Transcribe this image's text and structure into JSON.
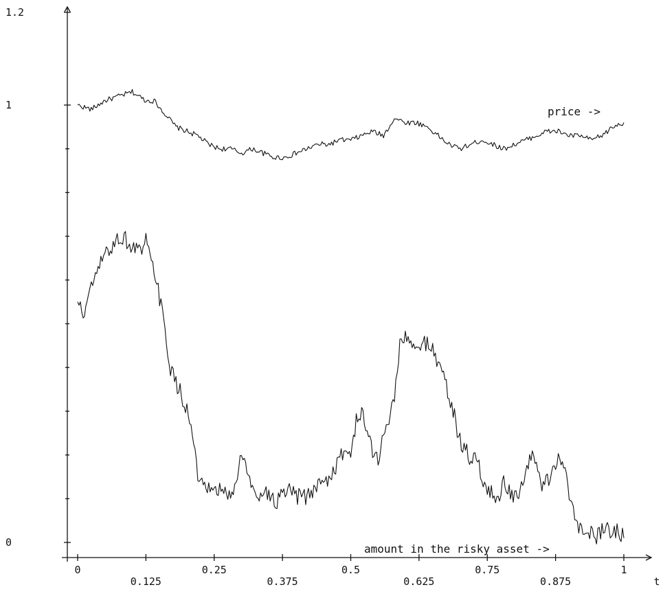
{
  "chart_data": {
    "type": "line",
    "title": "",
    "xlabel": "t",
    "ylabel": "",
    "xlim": [
      0,
      1
    ],
    "ylim": [
      0,
      1.2
    ],
    "grid": false,
    "x_ticks": [
      {
        "value": 0,
        "label": "0"
      },
      {
        "value": 0.125,
        "label": "0.125"
      },
      {
        "value": 0.25,
        "label": "0.25"
      },
      {
        "value": 0.375,
        "label": "0.375"
      },
      {
        "value": 0.5,
        "label": "0.5"
      },
      {
        "value": 0.625,
        "label": "0.625"
      },
      {
        "value": 0.75,
        "label": "0.75"
      },
      {
        "value": 0.875,
        "label": "0.875"
      },
      {
        "value": 1,
        "label": "1"
      }
    ],
    "y_ticks": [
      {
        "value": 0,
        "label": "0"
      },
      {
        "value": 1,
        "label": "1"
      },
      {
        "value": 1.2,
        "label": "1.2"
      }
    ],
    "series": [
      {
        "name": "price ->",
        "x": [
          0,
          0.025,
          0.05,
          0.075,
          0.1,
          0.125,
          0.14,
          0.16,
          0.18,
          0.2,
          0.22,
          0.24,
          0.26,
          0.28,
          0.3,
          0.32,
          0.34,
          0.36,
          0.38,
          0.4,
          0.42,
          0.44,
          0.46,
          0.48,
          0.5,
          0.52,
          0.54,
          0.56,
          0.58,
          0.6,
          0.62,
          0.64,
          0.66,
          0.68,
          0.7,
          0.72,
          0.74,
          0.76,
          0.78,
          0.8,
          0.82,
          0.84,
          0.86,
          0.88,
          0.9,
          0.92,
          0.94,
          0.96,
          0.98,
          1
        ],
        "values": [
          1.0,
          0.99,
          1.01,
          1.02,
          1.03,
          1.01,
          1.01,
          0.98,
          0.95,
          0.94,
          0.93,
          0.91,
          0.9,
          0.9,
          0.89,
          0.9,
          0.89,
          0.88,
          0.88,
          0.89,
          0.9,
          0.91,
          0.91,
          0.92,
          0.92,
          0.93,
          0.94,
          0.93,
          0.97,
          0.96,
          0.96,
          0.95,
          0.93,
          0.91,
          0.9,
          0.91,
          0.92,
          0.91,
          0.9,
          0.91,
          0.92,
          0.93,
          0.94,
          0.94,
          0.93,
          0.93,
          0.92,
          0.93,
          0.95,
          0.96
        ]
      },
      {
        "name": "amount in the risky asset ->",
        "x": [
          0,
          0.01,
          0.02,
          0.03,
          0.04,
          0.05,
          0.06,
          0.07,
          0.08,
          0.09,
          0.1,
          0.11,
          0.12,
          0.125,
          0.13,
          0.14,
          0.15,
          0.16,
          0.17,
          0.18,
          0.19,
          0.2,
          0.21,
          0.22,
          0.23,
          0.24,
          0.25,
          0.26,
          0.27,
          0.28,
          0.29,
          0.3,
          0.31,
          0.32,
          0.33,
          0.34,
          0.35,
          0.36,
          0.37,
          0.38,
          0.39,
          0.4,
          0.41,
          0.42,
          0.43,
          0.44,
          0.45,
          0.46,
          0.47,
          0.48,
          0.49,
          0.5,
          0.51,
          0.52,
          0.53,
          0.54,
          0.55,
          0.56,
          0.57,
          0.58,
          0.59,
          0.6,
          0.61,
          0.62,
          0.63,
          0.64,
          0.65,
          0.66,
          0.67,
          0.68,
          0.69,
          0.7,
          0.71,
          0.72,
          0.73,
          0.74,
          0.75,
          0.76,
          0.77,
          0.78,
          0.79,
          0.8,
          0.81,
          0.82,
          0.83,
          0.84,
          0.85,
          0.86,
          0.87,
          0.88,
          0.89,
          0.9,
          0.91,
          0.92,
          0.93,
          0.94,
          0.95,
          0.96,
          0.97,
          0.98,
          0.99,
          1
        ],
        "values": [
          0.55,
          0.52,
          0.56,
          0.6,
          0.63,
          0.66,
          0.67,
          0.69,
          0.7,
          0.69,
          0.67,
          0.68,
          0.66,
          0.69,
          0.66,
          0.62,
          0.56,
          0.48,
          0.4,
          0.36,
          0.34,
          0.3,
          0.25,
          0.15,
          0.12,
          0.12,
          0.11,
          0.12,
          0.11,
          0.11,
          0.13,
          0.21,
          0.16,
          0.12,
          0.11,
          0.12,
          0.11,
          0.09,
          0.1,
          0.11,
          0.12,
          0.1,
          0.11,
          0.1,
          0.12,
          0.13,
          0.15,
          0.14,
          0.17,
          0.19,
          0.21,
          0.2,
          0.28,
          0.29,
          0.26,
          0.21,
          0.19,
          0.24,
          0.28,
          0.34,
          0.45,
          0.47,
          0.45,
          0.44,
          0.45,
          0.46,
          0.44,
          0.41,
          0.39,
          0.33,
          0.29,
          0.23,
          0.21,
          0.19,
          0.19,
          0.15,
          0.12,
          0.11,
          0.1,
          0.14,
          0.12,
          0.1,
          0.11,
          0.15,
          0.2,
          0.18,
          0.13,
          0.14,
          0.17,
          0.19,
          0.18,
          0.1,
          0.07,
          0.03,
          0.04,
          0.02,
          0.01,
          0.03,
          0.04,
          0.02,
          0.03,
          0.01
        ]
      }
    ]
  }
}
